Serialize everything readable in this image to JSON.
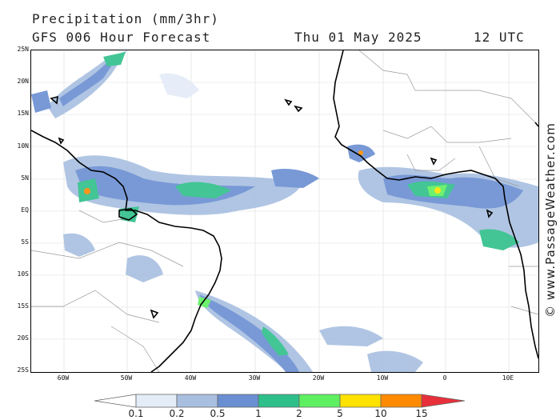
{
  "header": {
    "title": "Precipitation (mm/3hr)",
    "subtitle": "GFS 006 Hour Forecast",
    "date": "Thu 01 May 2025",
    "time": "12 UTC"
  },
  "map": {
    "lat_labels": [
      "25N",
      "20N",
      "15N",
      "10N",
      "5N",
      "EQ",
      "5S",
      "10S",
      "15S",
      "20S",
      "25S"
    ],
    "lon_labels": [
      "60W",
      "50W",
      "40W",
      "30W",
      "20W",
      "10W",
      "0",
      "10E"
    ],
    "colors": {
      "coast": "#000000",
      "borders": "#9a9a9a",
      "grid": "#cfcfcf"
    }
  },
  "legend": {
    "labels": [
      "0.1",
      "0.2",
      "0.5",
      "1",
      "2",
      "5",
      "10",
      "15"
    ],
    "colors": [
      "#ffffff",
      "#e4ecf8",
      "#a8bfe0",
      "#6a8fd2",
      "#2fbf8a",
      "#5ef060",
      "#ffe200",
      "#ff8a00",
      "#e8303a"
    ]
  },
  "copyright": "© www.PassageWeather.com"
}
